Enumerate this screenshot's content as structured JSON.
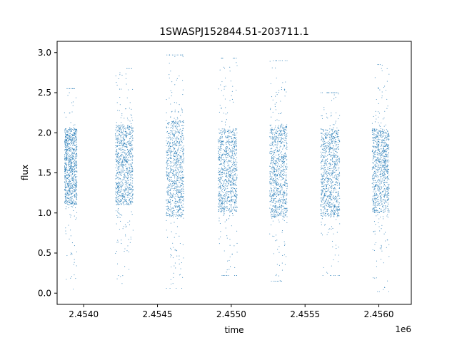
{
  "chart_data": {
    "type": "scatter",
    "title": "1SWASPJ152844.51-203711.1",
    "xlabel": "time",
    "ylabel": "flux",
    "x_offset_label": "1e6",
    "xlim": [
      2453820,
      2456220
    ],
    "ylim": [
      -0.14,
      3.14
    ],
    "xticks": [
      2454000,
      2454500,
      2455000,
      2455500,
      2456000
    ],
    "xtick_labels": [
      "2.4540",
      "2.4545",
      "2.4550",
      "2.4555",
      "2.4560"
    ],
    "yticks": [
      0.0,
      0.5,
      1.0,
      1.5,
      2.0,
      2.5,
      3.0
    ],
    "ytick_labels": [
      "0.0",
      "0.5",
      "1.0",
      "1.5",
      "2.0",
      "2.5",
      "3.0"
    ],
    "grid": false,
    "marker_color": "#1f77b4",
    "observing_seasons": [
      {
        "x_range": [
          2453870,
          2453955
        ],
        "y_core": [
          1.1,
          2.05
        ],
        "y_extent": [
          0.05,
          2.55
        ]
      },
      {
        "x_range": [
          2454215,
          2454335
        ],
        "y_core": [
          1.1,
          2.1
        ],
        "y_extent": [
          0.12,
          2.8
        ]
      },
      {
        "x_range": [
          2454560,
          2454680
        ],
        "y_core": [
          0.95,
          2.15
        ],
        "y_extent": [
          0.06,
          2.97
        ]
      },
      {
        "x_range": [
          2454910,
          2455040
        ],
        "y_core": [
          1.0,
          2.05
        ],
        "y_extent": [
          0.22,
          2.93
        ]
      },
      {
        "x_range": [
          2455260,
          2455380
        ],
        "y_core": [
          0.95,
          2.1
        ],
        "y_extent": [
          0.15,
          2.9
        ]
      },
      {
        "x_range": [
          2455605,
          2455735
        ],
        "y_core": [
          0.95,
          2.05
        ],
        "y_extent": [
          0.22,
          2.5
        ]
      },
      {
        "x_range": [
          2455955,
          2456070
        ],
        "y_core": [
          1.0,
          2.05
        ],
        "y_extent": [
          0.02,
          2.85
        ]
      }
    ]
  }
}
